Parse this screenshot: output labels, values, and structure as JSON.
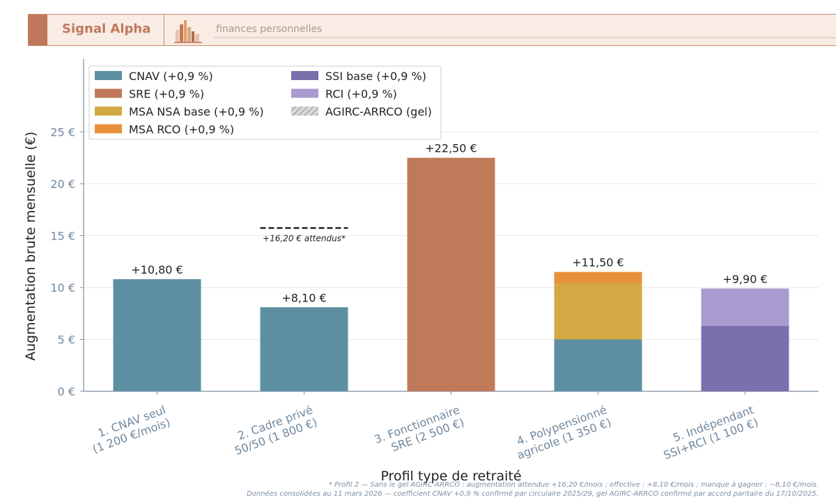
{
  "header": {
    "brand": "Signal Alpha",
    "tagline": "finances personnelles",
    "logo_icon": "bar-chart-city-icon"
  },
  "chart_data": {
    "type": "bar",
    "stacked": true,
    "xlabel": "Profil type de retraité",
    "ylabel": "Augmentation brute mensuelle (€)",
    "ylim": [
      0,
      32
    ],
    "yticks": [
      0,
      5,
      10,
      15,
      20,
      25
    ],
    "ytick_labels": [
      "0 €",
      "5 €",
      "10 €",
      "15 €",
      "20 €",
      "25 €"
    ],
    "grid": true,
    "legend_position": "top-left",
    "categories": [
      "1. CNAV seul\n(1 200 €/mois)",
      "2. Cadre privé\n50/50 (1 800 €)",
      "3. Fonctionnaire\nSRE (2 500 €)",
      "4. Polypensionné\nagricole (1 350 €)",
      "5. Indépendant\nSSI+RCI (1 100 €)"
    ],
    "series": [
      {
        "name": "CNAV (+0,9 %)",
        "color": "#5d8fa2",
        "values": [
          10.8,
          8.1,
          0,
          5.0,
          0
        ]
      },
      {
        "name": "SRE (+0,9 %)",
        "color": "#c07a59",
        "values": [
          0,
          0,
          22.5,
          0,
          0
        ]
      },
      {
        "name": "MSA NSA base (+0,9 %)",
        "color": "#d4a843",
        "values": [
          0,
          0,
          0,
          5.4,
          0
        ]
      },
      {
        "name": "MSA RCO (+0,9 %)",
        "color": "#e8903a",
        "values": [
          0,
          0,
          0,
          1.1,
          0
        ]
      },
      {
        "name": "SSI base (+0,9 %)",
        "color": "#7b6fac",
        "values": [
          0,
          0,
          0,
          0,
          6.3
        ]
      },
      {
        "name": "RCI (+0,9 %)",
        "color": "#a89bd0",
        "values": [
          0,
          0,
          0,
          0,
          3.6
        ]
      },
      {
        "name": "AGIRC-ARRCO (gel)",
        "color": "#cccccc",
        "pattern": "hatch",
        "values": [
          0,
          0,
          0,
          0,
          0
        ]
      }
    ],
    "total_labels": [
      "+10,80 €",
      "+8,10 €",
      "+22,50 €",
      "+11,50 €",
      "+9,90 €"
    ],
    "totals": [
      10.8,
      8.1,
      22.5,
      11.5,
      9.9
    ],
    "expected_line": {
      "category_index": 1,
      "value": 16.2,
      "label": "+16,20 € attendus*"
    },
    "footnotes": [
      "* Profil 2 — Sans le gel AGIRC-ARRCO : augmentation attendue +16,20 €/mois ; effective : +8,10 €/mois ; manque à gagner : ~8,10 €/mois.",
      "Données consolidées au 11 mars 2026 — coefficient CNAV +0,9 % confirmé par circulaire 2025/29, gel AGIRC-ARRCO confirmé par accord paritaire du 17/10/2025."
    ]
  }
}
